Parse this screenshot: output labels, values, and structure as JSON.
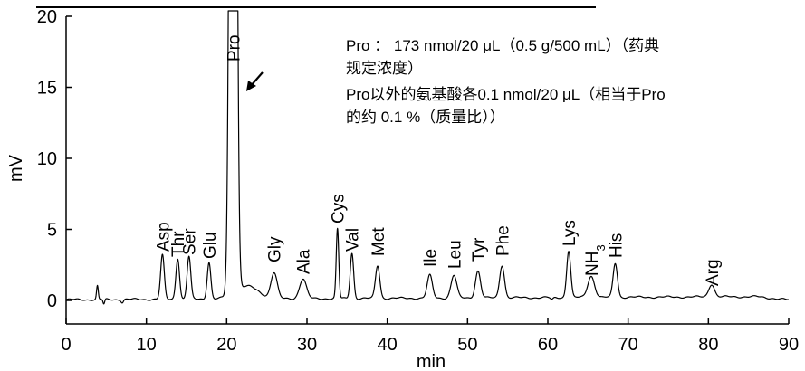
{
  "chart_data": {
    "type": "line",
    "xlabel": "min",
    "ylabel": "mV",
    "xlim": [
      0,
      90
    ],
    "ylim": [
      -1.5,
      20
    ],
    "x_ticks": [
      0,
      10,
      20,
      30,
      40,
      50,
      60,
      70,
      80,
      90
    ],
    "y_ticks": [
      0,
      5,
      10,
      15,
      20
    ],
    "grid": false,
    "peaks": [
      {
        "label": "Asp",
        "rt": 12.0,
        "height": 3.1,
        "width": 0.32
      },
      {
        "label": "Thr",
        "rt": 13.9,
        "height": 2.9,
        "width": 0.32
      },
      {
        "label": "Ser",
        "rt": 15.3,
        "height": 3.0,
        "width": 0.32
      },
      {
        "label": "Glu",
        "rt": 17.8,
        "height": 2.6,
        "width": 0.32
      },
      {
        "label": "Pro",
        "rt": 20.8,
        "height": 120,
        "width": 0.45
      },
      {
        "label": "Gly",
        "rt": 25.9,
        "height": 1.8,
        "width": 0.55
      },
      {
        "label": "Ala",
        "rt": 29.5,
        "height": 1.4,
        "width": 0.6
      },
      {
        "label": "Cys",
        "rt": 33.8,
        "height": 4.9,
        "width": 0.22
      },
      {
        "label": "Val",
        "rt": 35.6,
        "height": 3.2,
        "width": 0.3
      },
      {
        "label": "Met",
        "rt": 38.8,
        "height": 2.3,
        "width": 0.38
      },
      {
        "label": "Ile",
        "rt": 45.3,
        "height": 1.6,
        "width": 0.45
      },
      {
        "label": "Leu",
        "rt": 48.3,
        "height": 1.6,
        "width": 0.5
      },
      {
        "label": "Tyr",
        "rt": 51.3,
        "height": 1.9,
        "width": 0.45
      },
      {
        "label": "Phe",
        "rt": 54.3,
        "height": 2.3,
        "width": 0.42
      },
      {
        "label": "Lys",
        "rt": 62.6,
        "height": 3.3,
        "width": 0.35
      },
      {
        "label": "NH3",
        "rt": 65.4,
        "height": 1.5,
        "width": 0.6
      },
      {
        "label": "His",
        "rt": 68.4,
        "height": 2.4,
        "width": 0.38
      },
      {
        "label": "Arg",
        "rt": 80.4,
        "height": 0.9,
        "width": 0.5
      }
    ],
    "annotation": {
      "lines": [
        "Pro ： 173 nmol/20 μL（0.5 g/500 mL）（药典",
        "规定浓度）",
        "Pro以外的氨基酸各0.1 nmol/20 μL（相当于Pro",
        "的约 0.1 %（质量比））"
      ]
    },
    "line_color": "#000000"
  }
}
